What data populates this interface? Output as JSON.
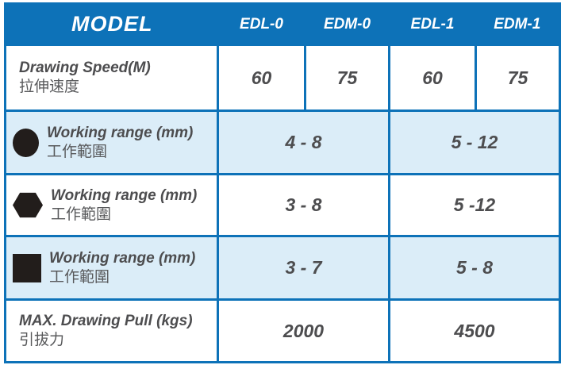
{
  "table": {
    "header": {
      "model_label": "MODEL",
      "columns": [
        "EDL-0",
        "EDM-0",
        "EDL-1",
        "EDM-1"
      ]
    },
    "rows": [
      {
        "label_en": "Drawing Speed(M)",
        "label_zh": "拉伸速度",
        "icon": null,
        "values": [
          "60",
          "75",
          "60",
          "75"
        ]
      },
      {
        "label_en": "Working range (mm)",
        "label_zh": "工作範圍",
        "icon": "circle",
        "values": [
          "4 - 8",
          "5 - 12"
        ]
      },
      {
        "label_en": "Working range (mm)",
        "label_zh": "工作範圍",
        "icon": "hexagon",
        "values": [
          "3 - 8",
          "5 -12"
        ]
      },
      {
        "label_en": "Working range (mm)",
        "label_zh": "工作範圍",
        "icon": "square",
        "values": [
          "3 - 7",
          "5 - 8"
        ]
      },
      {
        "label_en": "MAX. Drawing Pull (kgs)",
        "label_zh": "引拔力",
        "icon": null,
        "values": [
          "2000",
          "4500"
        ]
      }
    ],
    "colors": {
      "header_bg": "#0d72b8",
      "border": "#0d72b8",
      "row_alt_bg": "#dbedf8",
      "row_bg": "#ffffff",
      "header_text": "#ffffff",
      "body_text": "#4d4d4f",
      "icon_fill": "#221d1b"
    }
  }
}
